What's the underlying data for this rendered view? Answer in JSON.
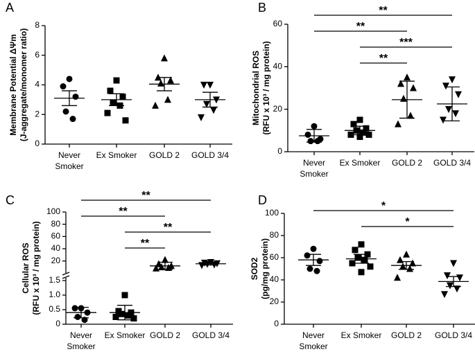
{
  "chart_data": [
    {
      "type": "dot",
      "label": "A",
      "ylabel": [
        "Membrane Potential ΔΨm",
        "(J-aggregate/monomer ratio)"
      ],
      "categories": [
        "Never Smoker",
        "Ex Smoker",
        "GOLD 2",
        "GOLD 3/4"
      ],
      "markers": [
        "circle",
        "square",
        "triangle",
        "triangle-down"
      ],
      "color": "#000000",
      "groups": [
        [
          4.4,
          3.9,
          3.2,
          2.2,
          1.7
        ],
        [
          4.3,
          3.6,
          3.2,
          2.8,
          2.6,
          2.1,
          1.6
        ],
        [
          5.8,
          4.5,
          4.3,
          4.1,
          3.0,
          2.6
        ],
        [
          4.0,
          4.0,
          3.0,
          2.7,
          2.3,
          1.8
        ]
      ],
      "means": [
        3.1,
        3.0,
        4.05,
        3.0
      ],
      "errors": [
        0.5,
        0.4,
        0.45,
        0.5
      ],
      "ylim": [
        0,
        8
      ],
      "yticks": [
        0,
        2,
        4,
        6,
        8
      ],
      "comparisons": []
    },
    {
      "type": "dot",
      "label": "B",
      "ylabel": [
        "Mitochondrial ROS",
        "(RFU x 10³ / mg protein)"
      ],
      "categories": [
        "Never Smoker",
        "Ex Smoker",
        "GOLD 2",
        "GOLD 3/4"
      ],
      "markers": [
        "circle",
        "square",
        "triangle",
        "triangle-down"
      ],
      "color": "#000000",
      "groups": [
        [
          12,
          8,
          6,
          5,
          5
        ],
        [
          15,
          13,
          11,
          10,
          9,
          8,
          8,
          7
        ],
        [
          35,
          32,
          30,
          25,
          17,
          13
        ],
        [
          34,
          31,
          27,
          20,
          18,
          15
        ]
      ],
      "means": [
        7.5,
        10,
        24.5,
        22.5
      ],
      "errors": [
        3,
        2,
        8.7,
        8
      ],
      "ylim": [
        0,
        60
      ],
      "yticks": [
        0,
        20,
        40,
        60
      ],
      "comparisons": [
        {
          "groups": [
            0,
            3
          ],
          "text": "**"
        },
        {
          "groups": [
            0,
            2
          ],
          "text": "**"
        },
        {
          "groups": [
            1,
            3
          ],
          "text": "***"
        },
        {
          "groups": [
            1,
            2
          ],
          "text": "**"
        }
      ]
    },
    {
      "type": "dot",
      "label": "C",
      "ylabel": [
        "Cellular ROS",
        "(RFU x 10³ / mg protein)"
      ],
      "categories": [
        "Never Smoker",
        "Ex Smoker",
        "GOLD 2",
        "GOLD 3/4"
      ],
      "markers": [
        "circle",
        "square",
        "triangle",
        "triangle-down"
      ],
      "color": "#000000",
      "groups": [
        [
          0.55,
          0.55,
          0.4,
          0.25,
          0.15
        ],
        [
          1.0,
          0.45,
          0.4,
          0.35,
          0.3,
          0.25,
          0.2
        ],
        [
          22,
          15,
          12,
          10,
          9,
          8
        ],
        [
          18,
          17,
          16,
          15,
          14,
          13
        ]
      ],
      "means": [
        0.4,
        0.4,
        12,
        15.5
      ],
      "errors": [
        0.18,
        0.25,
        6,
        2
      ],
      "ylim": [
        0,
        1.5
      ],
      "yticks": [
        0,
        0.5,
        {
          "value": 1,
          "label": "1.0"
        },
        1.5
      ],
      "broken_axis": true,
      "ylim_upper": [
        5,
        100
      ],
      "yticks_upper": [
        20,
        40,
        60,
        80,
        100
      ],
      "comparisons": [
        {
          "groups": [
            0,
            3
          ],
          "text": "**"
        },
        {
          "groups": [
            0,
            2
          ],
          "text": "**"
        },
        {
          "groups": [
            1,
            3
          ],
          "text": "**"
        },
        {
          "groups": [
            1,
            2
          ],
          "text": "**"
        }
      ]
    },
    {
      "type": "dot",
      "label": "D",
      "ylabel": [
        "SOD2",
        "(pg/mg protein)"
      ],
      "categories": [
        "Never Smoker",
        "Ex Smoker",
        "GOLD 2",
        "GOLD 3/4"
      ],
      "markers": [
        "circle",
        "square",
        "triangle",
        "triangle-down"
      ],
      "color": "#000000",
      "groups": [
        [
          68,
          62,
          57,
          50,
          48
        ],
        [
          72,
          67,
          63,
          60,
          58,
          55,
          52,
          47
        ],
        [
          63,
          58,
          55,
          52,
          50,
          42
        ],
        [
          55,
          44,
          42,
          35,
          32,
          27
        ]
      ],
      "means": [
        58,
        59,
        53,
        38.5
      ],
      "errors": [
        5,
        4,
        3.5,
        4.5
      ],
      "ylim": [
        0,
        100
      ],
      "yticks": [
        0,
        20,
        40,
        60,
        80,
        100
      ],
      "comparisons": [
        {
          "groups": [
            0,
            3
          ],
          "text": "*"
        },
        {
          "groups": [
            1,
            3
          ],
          "text": "*"
        }
      ]
    }
  ]
}
